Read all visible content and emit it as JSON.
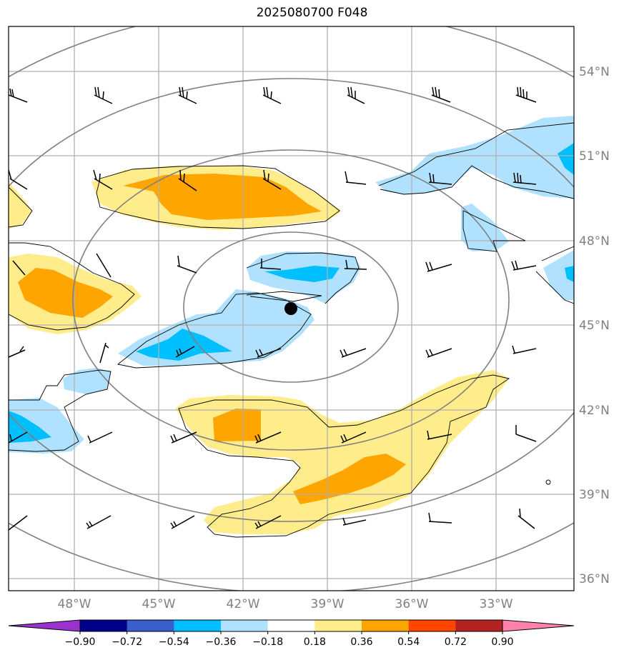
{
  "title": "2025080700 F048",
  "map": {
    "lat_labels": [
      "54°N",
      "51°N",
      "48°N",
      "45°N",
      "42°N",
      "39°N",
      "36°N"
    ],
    "lon_labels": [
      "48°W",
      "45°W",
      "42°W",
      "39°W",
      "36°W",
      "33°W"
    ]
  },
  "colorbar": {
    "ticks": [
      "−0.90",
      "−0.72",
      "−0.54",
      "−0.36",
      "−0.18",
      "0.18",
      "0.36",
      "0.54",
      "0.72",
      "0.90"
    ],
    "colors": [
      "#9a32cd",
      "#00008b",
      "#3a5fcd",
      "#00bfff",
      "#b0e2ff",
      "#ffffff",
      "#ffec8b",
      "#ffa500",
      "#ff4500",
      "#b22222",
      "#ff82ab"
    ]
  },
  "colors": {
    "light_blue": "#b0e2ff",
    "deep_sky_blue": "#00bfff",
    "light_yellow": "#ffec8b",
    "orange": "#ffa500",
    "gridline": "#b0b0b0",
    "circle": "#808080"
  }
}
